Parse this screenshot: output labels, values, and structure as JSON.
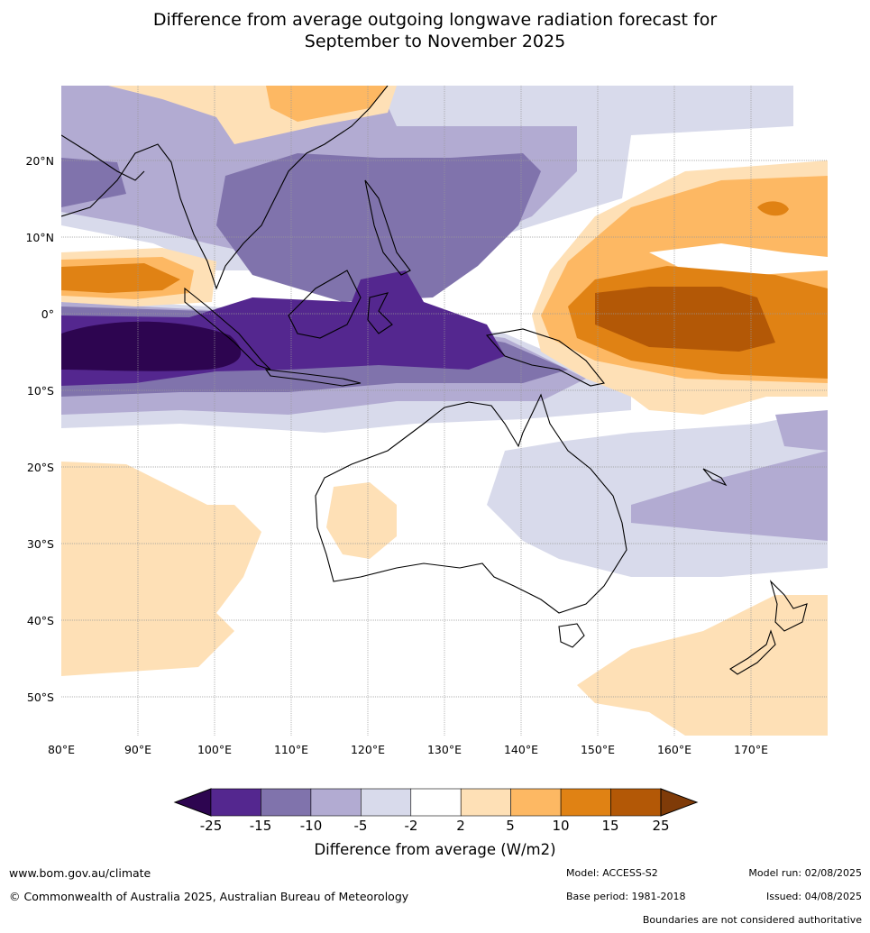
{
  "title_line1": "Difference from average outgoing longwave radiation forecast for",
  "title_line2": "September to November 2025",
  "lat_labels": [
    "20°N",
    "10°N",
    "0°",
    "10°S",
    "20°S",
    "30°S",
    "40°S",
    "50°S"
  ],
  "lon_labels": [
    "80°E",
    "90°E",
    "100°E",
    "110°E",
    "120°E",
    "130°E",
    "140°E",
    "150°E",
    "160°E",
    "170°E"
  ],
  "colorbar": {
    "ticks": [
      "-25",
      "-15",
      "-10",
      "-5",
      "-2",
      "2",
      "5",
      "10",
      "15",
      "25"
    ],
    "colors": [
      "#2d0550",
      "#54278f",
      "#8073ac",
      "#b2abd2",
      "#d8daeb",
      "#ffffff",
      "#fee0b6",
      "#fdb863",
      "#e08214",
      "#b35806",
      "#7f3b08"
    ],
    "title": "Difference from average (W/m2)"
  },
  "footer": {
    "website": "www.bom.gov.au/climate",
    "copyright": "© Commonwealth of Australia 2025, Australian Bureau of Meteorology",
    "model": "Model: ACCESS-S2",
    "base_period": "Base period: 1981-2018",
    "model_run": "Model run: 02/08/2025",
    "issued": "Issued: 04/08/2025",
    "boundaries_note": "Boundaries are not considered authoritative"
  }
}
